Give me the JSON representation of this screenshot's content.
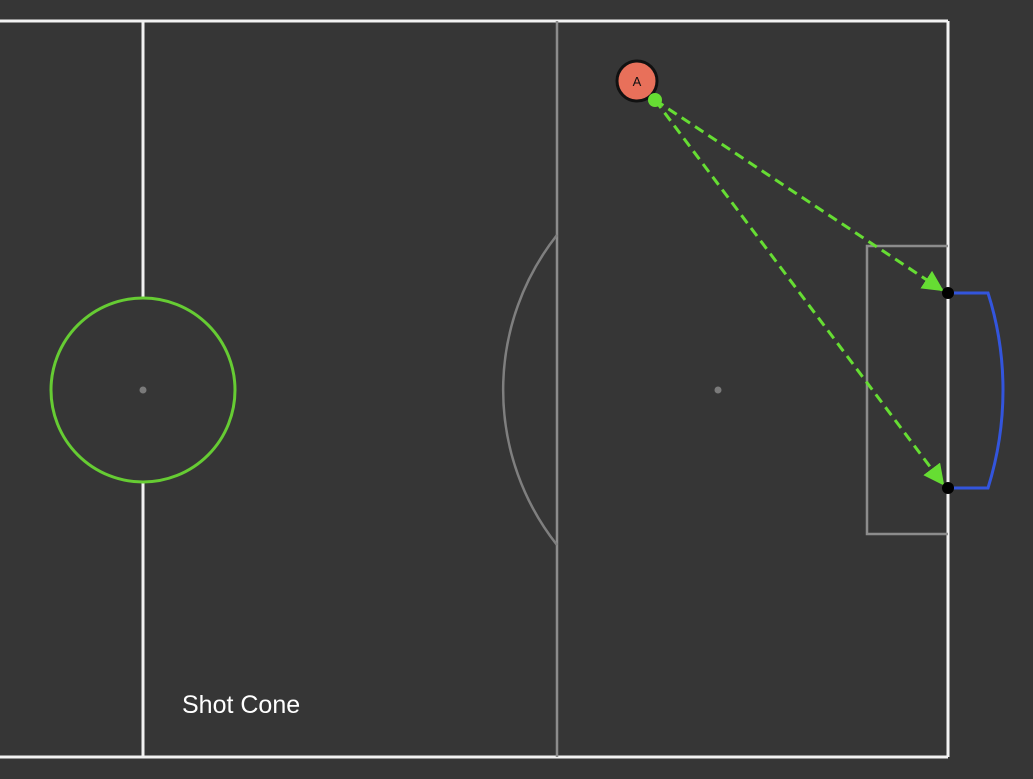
{
  "caption": "Shot Cone",
  "player": {
    "label": "A",
    "color": "#e8705a",
    "role": "shooter"
  },
  "colors": {
    "background": "#363636",
    "pitch_lines": "#f2f2f2",
    "penalty_markings": "#8c8c8c",
    "center_circle": "#66cc33",
    "shot_lines": "#66dd33",
    "goal_frame": "#3355dd",
    "goal_posts": "#000000"
  },
  "icons": {
    "player": "player-marker-icon",
    "ball": "ball-icon",
    "goal": "goal-frame-icon"
  },
  "shot_cone": {
    "lines": 2,
    "style": "dashed",
    "targets": [
      "near-post",
      "far-post"
    ]
  }
}
